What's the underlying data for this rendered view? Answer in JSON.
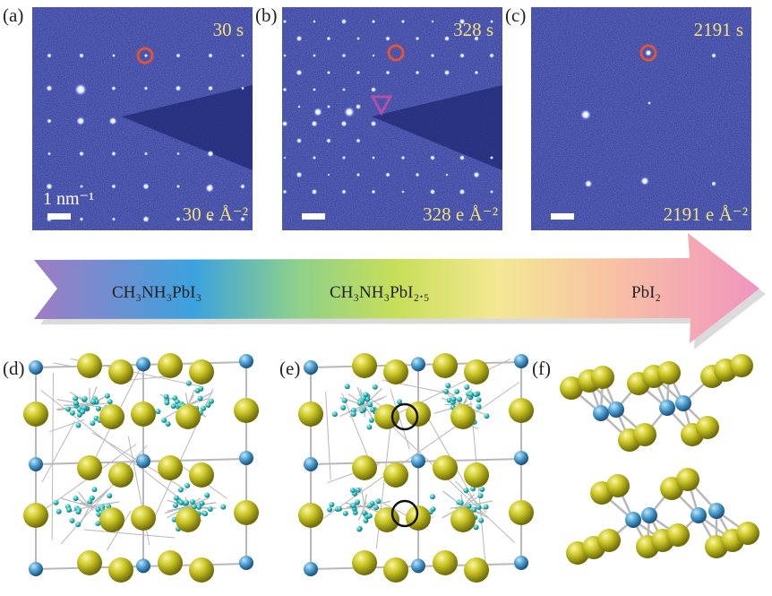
{
  "panels": [
    {
      "label": "(a)",
      "time": "30 s",
      "dose": "30 e Å⁻²",
      "scale_label": "1 nm⁻¹"
    },
    {
      "label": "(b)",
      "time": "328 s",
      "dose": "328 e Å⁻²"
    },
    {
      "label": "(c)",
      "time": "2191 s",
      "dose": "2191 e Å⁻²"
    }
  ],
  "arrow": {
    "stages": [
      "CH₃NH₃PbI₃",
      "CH₃NH₃PbI₂.₅",
      "PbI₂"
    ],
    "gradient_colors": [
      "#9b7fc4",
      "#3fa0dc",
      "#8fd08a",
      "#cfe060",
      "#f4e690",
      "#f8c0a0",
      "#f29ac0"
    ]
  },
  "structures": [
    {
      "label": "(d)"
    },
    {
      "label": "(e)"
    },
    {
      "label": "(f)"
    }
  ],
  "colors": {
    "iodine": "#c8c426",
    "lead": "#4a9ed0",
    "organic": "#40c8c8",
    "diffraction_bg": "#2a3590",
    "marker_circle": "#e0553a",
    "marker_triangle": "#b050a8"
  }
}
